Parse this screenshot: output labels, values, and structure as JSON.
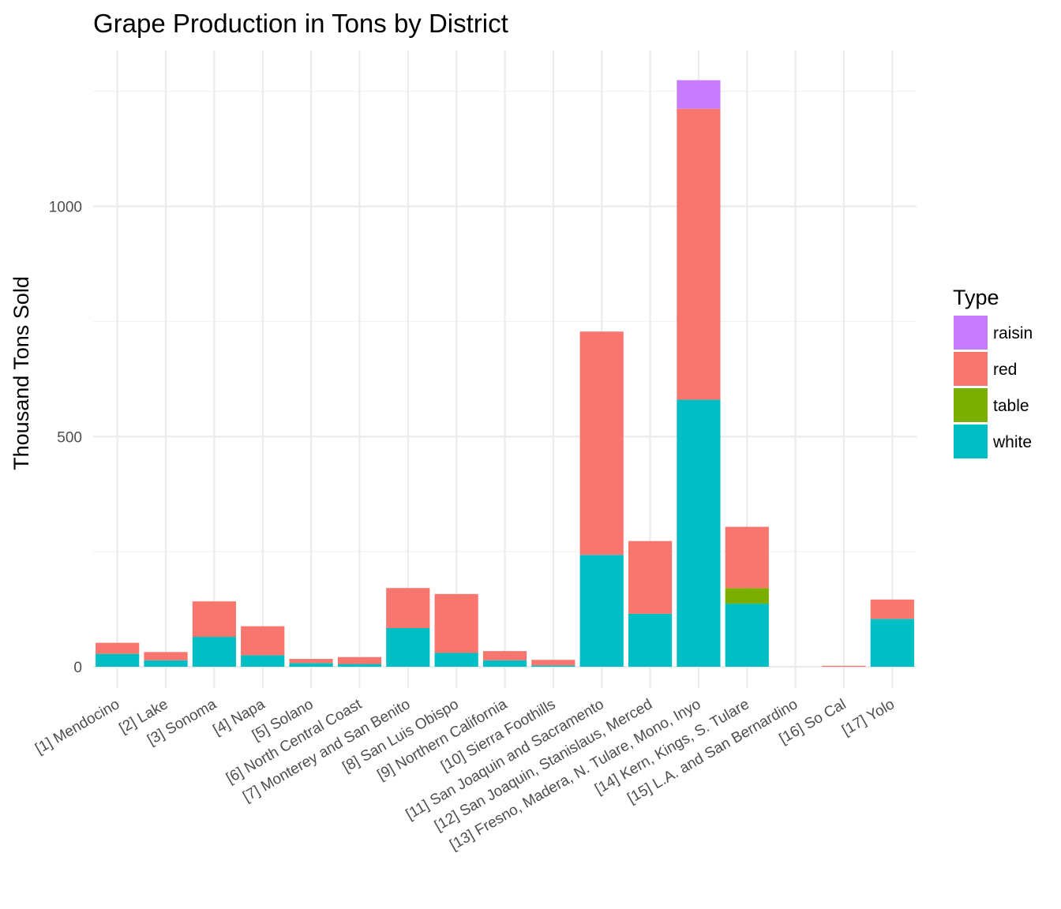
{
  "chart_data": {
    "type": "bar",
    "stacked": true,
    "title": "Grape Production in Tons by District",
    "xlabel": "",
    "ylabel": "Thousand Tons Sold",
    "ylim": [
      -49,
      1300
    ],
    "yticks": [
      0,
      500,
      1000
    ],
    "grid": true,
    "legend": {
      "title": "Type",
      "placement": "right"
    },
    "categories": [
      "[1] Mendocino",
      "[2] Lake",
      "[3] Sonoma",
      "[4] Napa",
      "[5] Solano",
      "[6] North Central Coast",
      "[7] Monterey and San Benito",
      "[8] San Luis Obispo",
      "[9] Northern California",
      "[10] Sierra Foothills",
      "[11] San Joaquin and Sacramento",
      "[12] San Joaquin, Stanislaus, Merced",
      "[13] Fresno, Madera, N. Tulare, Mono, Inyo",
      "[14] Kern, Kings, S. Tulare",
      "[15] L.A. and San Bernardino",
      "[16] So Cal",
      "[17] Yolo"
    ],
    "series": [
      {
        "name": "white",
        "color": "#00BFC4",
        "values": [
          28,
          14,
          65,
          25,
          8,
          6,
          84,
          30,
          14,
          3,
          243,
          115,
          580,
          137,
          0,
          0,
          104
        ]
      },
      {
        "name": "table",
        "color": "#7CAE00",
        "values": [
          0,
          0,
          0,
          0,
          0,
          0,
          0,
          0,
          0,
          0,
          0,
          0,
          0,
          34,
          0,
          0,
          0
        ]
      },
      {
        "name": "red",
        "color": "#F8766D",
        "values": [
          24,
          18,
          77,
          63,
          9,
          15,
          87,
          128,
          20,
          12,
          485,
          158,
          632,
          133,
          0,
          2,
          42
        ]
      },
      {
        "name": "raisin",
        "color": "#C77CFF",
        "values": [
          0,
          0,
          0,
          0,
          0,
          0,
          0,
          0,
          0,
          0,
          0,
          0,
          62,
          0,
          0,
          0,
          0
        ]
      }
    ],
    "legend_order": [
      "raisin",
      "red",
      "table",
      "white"
    ]
  }
}
